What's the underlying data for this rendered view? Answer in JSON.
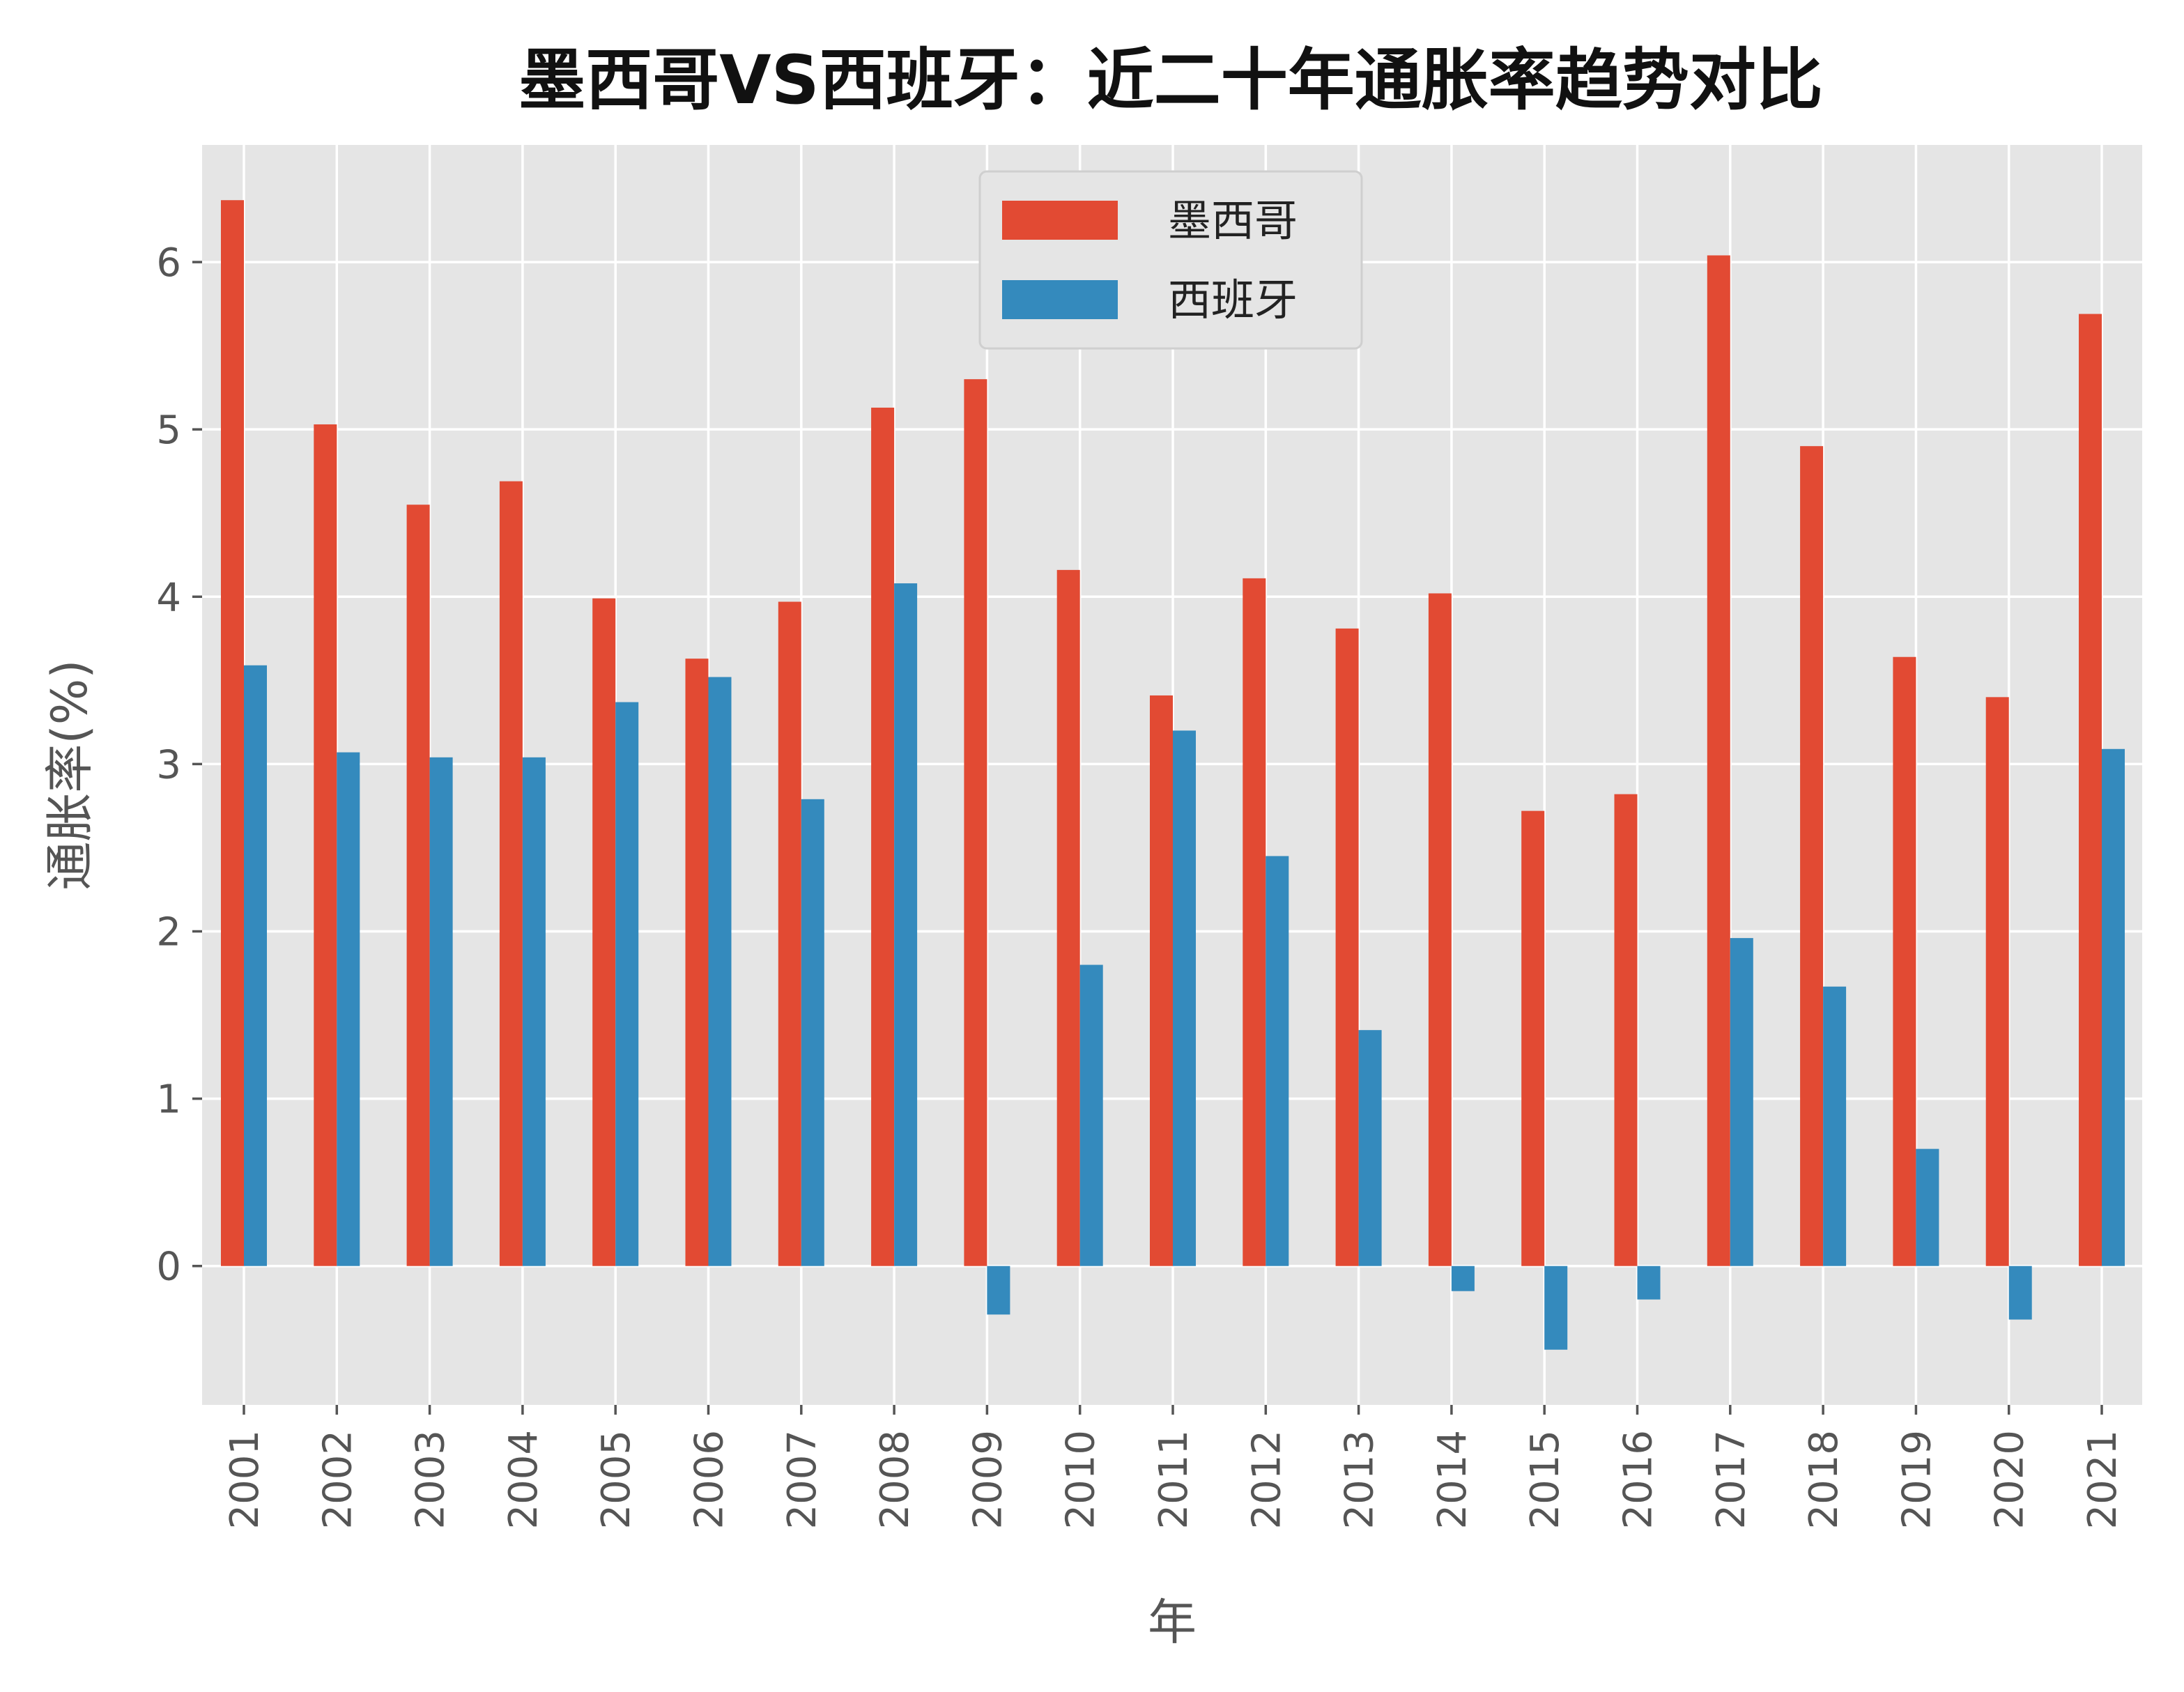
{
  "chart_data": {
    "type": "bar",
    "title": "墨西哥VS西班牙：近二十年通胀率趋势对比",
    "xlabel": "年",
    "ylabel": "通胀率(%)",
    "categories": [
      "2001",
      "2002",
      "2003",
      "2004",
      "2005",
      "2006",
      "2007",
      "2008",
      "2009",
      "2010",
      "2011",
      "2012",
      "2013",
      "2014",
      "2015",
      "2016",
      "2017",
      "2018",
      "2019",
      "2020",
      "2021"
    ],
    "yticks": [
      "0",
      "1",
      "2",
      "3",
      "4",
      "5",
      "6"
    ],
    "ylim": [
      -0.83,
      6.7
    ],
    "grid": true,
    "legend_position": "top-center",
    "series": [
      {
        "name": "墨西哥",
        "color": "#E24A33",
        "values": [
          6.37,
          5.03,
          4.55,
          4.69,
          3.99,
          3.63,
          3.97,
          5.13,
          5.3,
          4.16,
          3.41,
          4.11,
          3.81,
          4.02,
          2.72,
          2.82,
          6.04,
          4.9,
          3.64,
          3.4,
          5.69
        ]
      },
      {
        "name": "西班牙",
        "color": "#348ABD",
        "values": [
          3.59,
          3.07,
          3.04,
          3.04,
          3.37,
          3.52,
          2.79,
          4.08,
          -0.29,
          1.8,
          3.2,
          2.45,
          1.41,
          -0.15,
          -0.5,
          -0.2,
          1.96,
          1.67,
          0.7,
          -0.32,
          3.09
        ]
      }
    ]
  }
}
